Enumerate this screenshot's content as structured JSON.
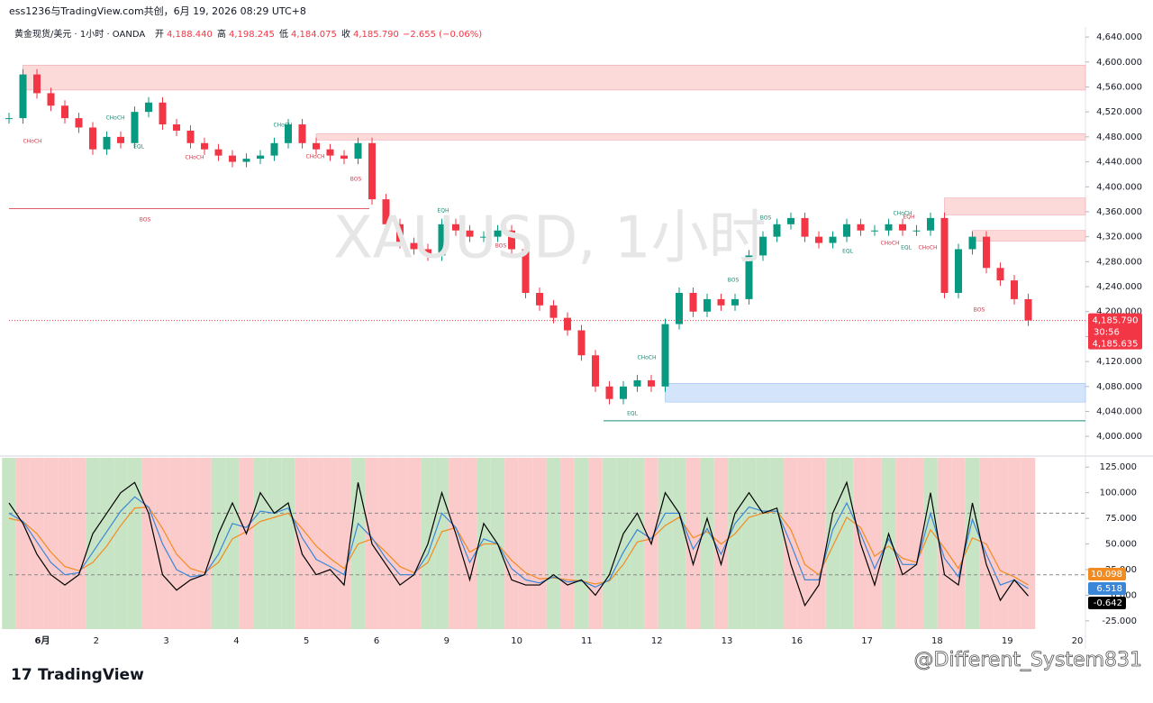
{
  "header": {
    "attribution": "ess1236与TradingView.com共创，6月 19, 2026 08:29 UTC+8",
    "symbol": "黄金现货/美元 · 1小时 · OANDA",
    "open_label": "开",
    "open": "4,188.440",
    "high_label": "高",
    "high": "4,198.245",
    "low_label": "低",
    "low": "4,184.075",
    "close_label": "收",
    "close": "4,185.790",
    "change": "−2.655 (−0.06%)"
  },
  "watermark": "XAUUSD, 1小时",
  "footer": {
    "logo": "TradingView",
    "credit": "@Different_System831"
  },
  "chart_data": [
    {
      "type": "candlestick",
      "name": "price",
      "color_up": "#089981",
      "color_down": "#f23645",
      "values": [
        4510,
        4580,
        4550,
        4530,
        4510,
        4495,
        4460,
        4480,
        4470,
        4520,
        4535,
        4500,
        4490,
        4470,
        4460,
        4450,
        4440,
        4445,
        4450,
        4470,
        4500,
        4470,
        4460,
        4450,
        4445,
        4470,
        4380,
        4340,
        4310,
        4300,
        4290,
        4340,
        4330,
        4320,
        4320,
        4330,
        4300,
        4230,
        4210,
        4190,
        4170,
        4130,
        4080,
        4060,
        4080,
        4090,
        4080,
        4180,
        4230,
        4200,
        4220,
        4210,
        4220,
        4290,
        4320,
        4340,
        4350,
        4320,
        4310,
        4320,
        4340,
        4330,
        4330,
        4340,
        4330,
        4330,
        4350,
        4230,
        4300,
        4320,
        4270,
        4250,
        4220,
        4185.79
      ],
      "ylim": [
        3970,
        4656
      ],
      "yticks": [
        {
          "value": 4000,
          "label": "4,000.000"
        },
        {
          "value": 4040,
          "label": "4,040.000"
        },
        {
          "value": 4080,
          "label": "4,080.000"
        },
        {
          "value": 4120,
          "label": "4,120.000"
        },
        {
          "value": 4160,
          "label": "4,160.000"
        },
        {
          "value": 4200,
          "label": "4,200.000"
        },
        {
          "value": 4240,
          "label": "4,240.000"
        },
        {
          "value": 4280,
          "label": "4,280.000"
        },
        {
          "value": 4320,
          "label": "4,320.000"
        },
        {
          "value": 4360,
          "label": "4,360.000"
        },
        {
          "value": 4400,
          "label": "4,400.000"
        },
        {
          "value": 4440,
          "label": "4,440.000"
        },
        {
          "value": 4480,
          "label": "4,480.000"
        },
        {
          "value": 4520,
          "label": "4,520.000"
        },
        {
          "value": 4560,
          "label": "4,560.000"
        },
        {
          "value": 4600,
          "label": "4,600.000"
        },
        {
          "value": 4640,
          "label": "4,640.000"
        }
      ],
      "last_price": {
        "value": 4185.79,
        "label": "4,185.790",
        "countdown": "30:56",
        "bid": "4,185.635"
      },
      "zones": [
        {
          "x_start": 1,
          "low": 4555,
          "high": 4595,
          "color": "#fcdada"
        },
        {
          "x_start": 22,
          "low": 4475,
          "high": 4485,
          "color": "#fcdada"
        },
        {
          "x_start": 67,
          "low": 4355,
          "high": 4382,
          "color": "#fcdada"
        },
        {
          "x_start": 69,
          "low": 4313,
          "high": 4330,
          "color": "#fcdada"
        },
        {
          "x_start": 47,
          "low": 4055,
          "high": 4085,
          "color": "#d4e5fb"
        }
      ],
      "levels": [
        {
          "value": 4365,
          "color": "#e05c6a"
        },
        {
          "value": 4025,
          "color": "#1c8a74"
        }
      ],
      "annotations": [
        "CHoCH",
        "CHoCH",
        "EQL",
        "CHoCH",
        "CHoCH",
        "CHoCH",
        "BOS",
        "BOS",
        "EQH",
        "BOS",
        "BOS",
        "CHoCH",
        "EQL",
        "BOS",
        "EQL",
        "CHoCH",
        "EQH",
        "CHoCH",
        "EQL",
        "CHoCH",
        "BOS"
      ]
    },
    {
      "type": "line",
      "name": "oscillator",
      "ylim": [
        -33,
        134
      ],
      "yticks": [
        {
          "value": -25,
          "label": "-25.000"
        },
        {
          "value": 0,
          "label": "0.000"
        },
        {
          "value": 25,
          "label": "25.000"
        },
        {
          "value": 50,
          "label": "50.000"
        },
        {
          "value": 75,
          "label": "75.000"
        },
        {
          "value": 100,
          "label": "100.000"
        },
        {
          "value": 125,
          "label": "125.000"
        }
      ],
      "levels": [
        80,
        20
      ],
      "series": [
        {
          "name": "k",
          "color": "#000000",
          "values": [
            90,
            70,
            40,
            20,
            10,
            20,
            60,
            80,
            100,
            110,
            80,
            20,
            5,
            15,
            20,
            60,
            90,
            60,
            100,
            80,
            90,
            40,
            20,
            25,
            10,
            110,
            50,
            30,
            10,
            20,
            50,
            100,
            60,
            15,
            70,
            50,
            15,
            10,
            10,
            20,
            10,
            15,
            0,
            20,
            60,
            80,
            50,
            100,
            80,
            30,
            75,
            30,
            80,
            100,
            80,
            85,
            30,
            -10,
            10,
            80,
            110,
            50,
            10,
            60,
            20,
            30,
            100,
            20,
            10,
            90,
            30,
            -5,
            15,
            -0.642
          ],
          "last_label": "-0.642"
        },
        {
          "name": "d",
          "color": "#3a86d8",
          "values": [
            80,
            72,
            52,
            32,
            20,
            22,
            42,
            62,
            82,
            96,
            86,
            50,
            25,
            18,
            20,
            40,
            70,
            66,
            82,
            80,
            85,
            56,
            35,
            28,
            20,
            70,
            56,
            36,
            20,
            20,
            40,
            80,
            66,
            32,
            55,
            50,
            26,
            15,
            12,
            18,
            13,
            14,
            8,
            15,
            42,
            64,
            55,
            80,
            80,
            45,
            65,
            40,
            70,
            86,
            82,
            82,
            50,
            15,
            15,
            64,
            90,
            60,
            26,
            55,
            30,
            30,
            80,
            36,
            18,
            74,
            40,
            10,
            15,
            6.518
          ],
          "last_label": "6.518"
        },
        {
          "name": "signal",
          "color": "#f28b20",
          "values": [
            75,
            72,
            60,
            42,
            28,
            24,
            32,
            48,
            68,
            85,
            86,
            65,
            40,
            26,
            22,
            32,
            55,
            62,
            72,
            76,
            80,
            65,
            48,
            36,
            26,
            50,
            55,
            42,
            28,
            22,
            32,
            62,
            66,
            42,
            50,
            50,
            34,
            22,
            16,
            17,
            15,
            14,
            11,
            14,
            30,
            52,
            55,
            68,
            76,
            56,
            62,
            50,
            60,
            76,
            80,
            82,
            64,
            30,
            20,
            48,
            76,
            66,
            38,
            48,
            36,
            32,
            64,
            46,
            26,
            56,
            50,
            24,
            18,
            10.098
          ],
          "last_label": "10.098"
        }
      ]
    },
    {
      "type": "time_axis",
      "categories": [
        "6月",
        "2",
        "3",
        "4",
        "5",
        "6",
        "9",
        "10",
        "11",
        "12",
        "13",
        "16",
        "17",
        "18",
        "19",
        "20"
      ]
    }
  ]
}
